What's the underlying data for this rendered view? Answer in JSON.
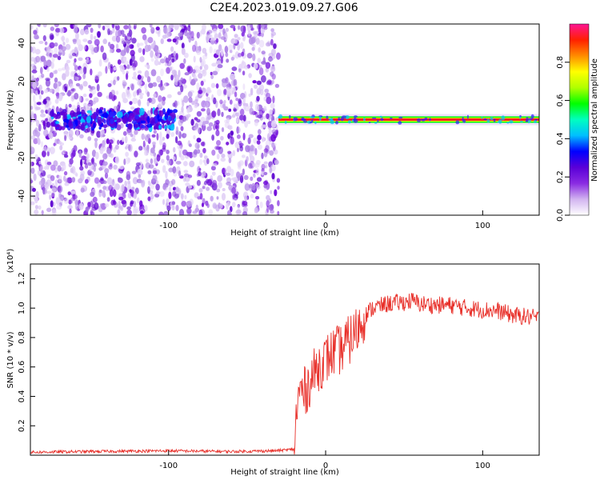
{
  "title": "C2E4.2023.019.09.27.G06",
  "spectrogram": {
    "xlabel": "Height of straight line (km)",
    "ylabel": "Frequency (Hz)",
    "xlim": [
      -188,
      136
    ],
    "ylim": [
      -50,
      50
    ],
    "x_ticks": [
      -100,
      0,
      100
    ],
    "x_tick_labels": [
      "-100",
      "0",
      "100"
    ],
    "y_ticks": [
      -40,
      -20,
      0,
      20,
      40
    ],
    "y_tick_labels": [
      "-40",
      "-20",
      "0",
      "20",
      "40"
    ],
    "noise_region_x": [
      -188,
      -30
    ],
    "carrier_frequency_hz": 0
  },
  "colorbar": {
    "label": "Normalized spectral amplitude",
    "range": [
      0,
      1
    ],
    "ticks": [
      0.0,
      0.2,
      0.4,
      0.6,
      0.8
    ],
    "tick_labels": [
      "0.0",
      "0.2",
      "0.4",
      "0.6",
      "0.8"
    ],
    "colors": [
      "#ffffff",
      "#d2b4f0",
      "#8a2be2",
      "#5a00d8",
      "#0000ff",
      "#00bfff",
      "#00ffc0",
      "#00ff00",
      "#b0ff00",
      "#ffff00",
      "#ff8c00",
      "#ff2000",
      "#ff1493"
    ]
  },
  "chart_data": {
    "type": "line",
    "title": "C2E4.2023.019.09.27.G06",
    "xlabel": "Height of straight line (km)",
    "ylabel": "SNR (10 * v/v)",
    "y_multiplier": "(x10⁴)",
    "xlim": [
      -188,
      136
    ],
    "ylim": [
      0,
      1.3
    ],
    "x_ticks": [
      -100,
      0,
      100
    ],
    "x_tick_labels": [
      "-100",
      "0",
      "100"
    ],
    "y_ticks": [
      0.2,
      0.4,
      0.6,
      0.8,
      1.0,
      1.2
    ],
    "y_tick_labels": [
      "0.2",
      "0.4",
      "0.6",
      "0.8",
      "1.0",
      "1.2"
    ],
    "series": [
      {
        "color": "#e8302a",
        "x": [
          -188,
          -150,
          -100,
          -60,
          -32,
          -20,
          -18,
          -16,
          -14,
          -10,
          -5,
          0,
          5,
          10,
          15,
          20,
          25,
          30,
          40,
          50,
          55,
          60,
          70,
          80,
          90,
          100,
          110,
          120,
          130,
          136
        ],
        "y": [
          0.02,
          0.025,
          0.03,
          0.025,
          0.03,
          0.04,
          0.35,
          0.45,
          0.42,
          0.5,
          0.6,
          0.65,
          0.7,
          0.72,
          0.78,
          0.85,
          0.95,
          1.0,
          1.03,
          1.04,
          1.05,
          1.03,
          1.02,
          1.02,
          1.0,
          0.99,
          0.98,
          0.95,
          0.94,
          0.93
        ]
      }
    ]
  }
}
